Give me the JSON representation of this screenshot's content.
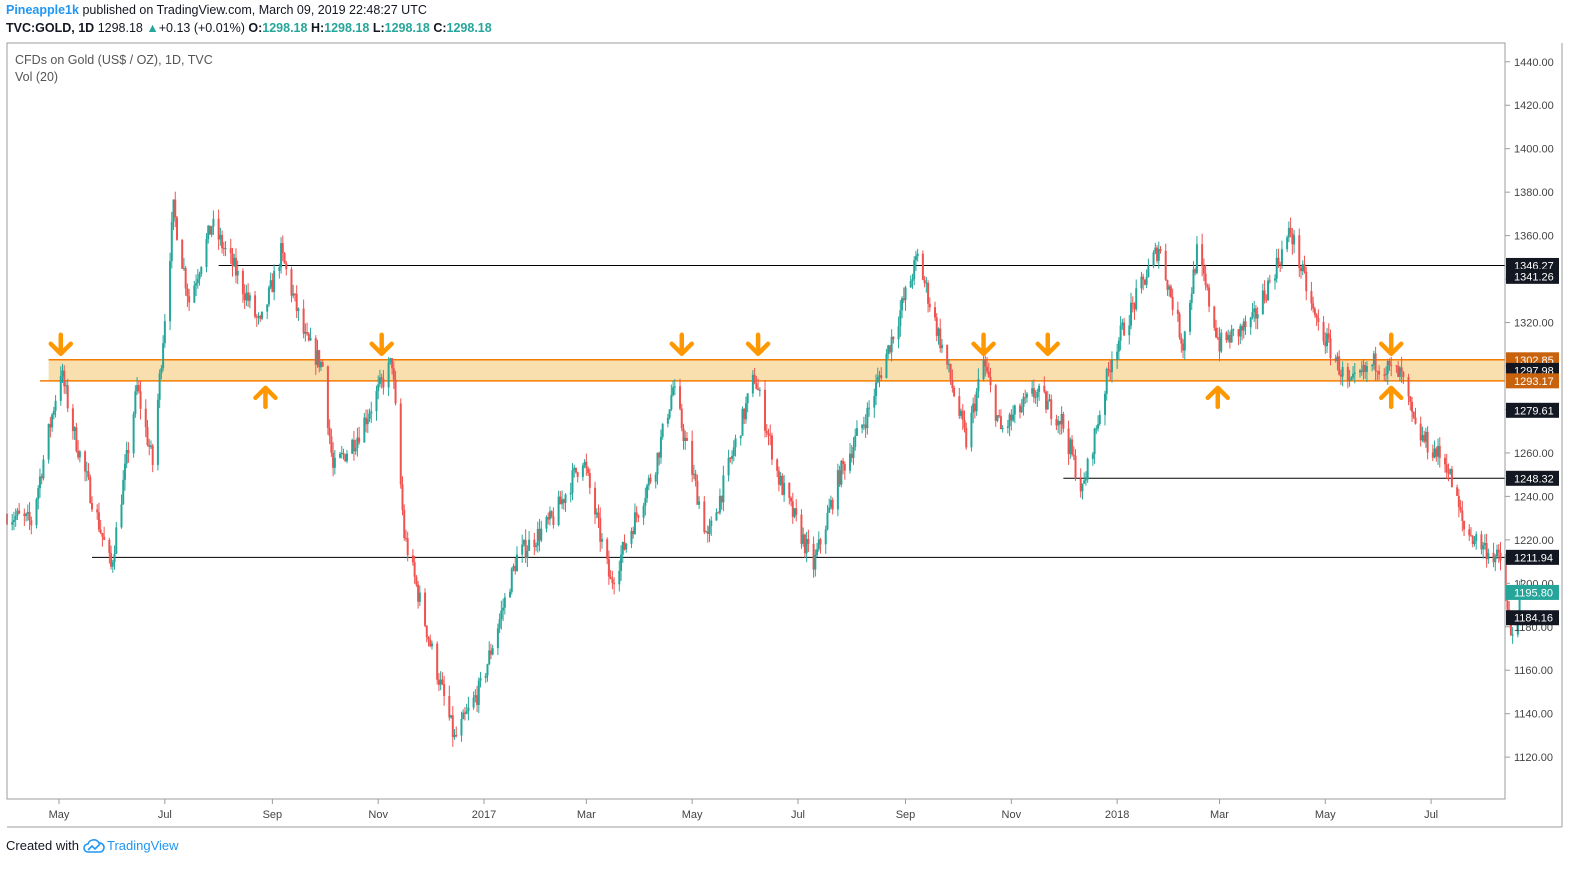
{
  "header": {
    "author": "Pineapple1k",
    "published_text": "published on TradingView.com, March 09, 2019 22:48:27 UTC",
    "symbol": "TVC:GOLD, 1D",
    "last": "1298.18",
    "change": "+0.13 (+0.01%)",
    "o_label": "O:",
    "o_value": "1298.18",
    "h_label": "H:",
    "h_value": "1298.18",
    "l_label": "L:",
    "l_value": "1298.18",
    "c_label": "C:",
    "c_value": "1298.18"
  },
  "legend": {
    "title": "CFDs on Gold (US$ / OZ), 1D, TVC",
    "indicator": "Vol (20)"
  },
  "footer": {
    "created_with": "Created with",
    "brand": "TradingView"
  },
  "colors": {
    "up": "#26a69a",
    "down": "#ef5350",
    "zone_fill": "#f8d8a0",
    "zone_line": "#f57c00",
    "arrow": "#ff9800",
    "level": "#000000"
  },
  "chart_data": {
    "type": "candlestick",
    "title": "CFDs on Gold (US$ / OZ), 1D, TVC",
    "xlabel": "",
    "ylabel": "",
    "x_range": [
      "2016-04-01",
      "2018-08-22"
    ],
    "ylim": [
      1100,
      1450
    ],
    "y_ticks": [
      1120,
      1140,
      1160,
      1180,
      1200,
      1220,
      1240,
      1260,
      1280,
      1300,
      1320,
      1340,
      1360,
      1380,
      1400,
      1420,
      1440
    ],
    "x_ticks": [
      {
        "label": "May",
        "date": "2016-05-01"
      },
      {
        "label": "Jul",
        "date": "2016-07-01"
      },
      {
        "label": "Sep",
        "date": "2016-09-01"
      },
      {
        "label": "Nov",
        "date": "2016-11-01"
      },
      {
        "label": "2017",
        "date": "2017-01-01"
      },
      {
        "label": "Mar",
        "date": "2017-03-01"
      },
      {
        "label": "May",
        "date": "2017-05-01"
      },
      {
        "label": "Jul",
        "date": "2017-07-01"
      },
      {
        "label": "Sep",
        "date": "2017-09-01"
      },
      {
        "label": "Nov",
        "date": "2017-11-01"
      },
      {
        "label": "2018",
        "date": "2018-01-01"
      },
      {
        "label": "Mar",
        "date": "2018-03-01"
      },
      {
        "label": "May",
        "date": "2018-05-01"
      },
      {
        "label": "Jul",
        "date": "2018-07-01"
      }
    ],
    "price_path": [
      [
        "2016-04-01",
        1232
      ],
      [
        "2016-04-15",
        1228
      ],
      [
        "2016-05-02",
        1298
      ],
      [
        "2016-05-10",
        1268
      ],
      [
        "2016-05-31",
        1207
      ],
      [
        "2016-06-15",
        1290
      ],
      [
        "2016-06-24",
        1255
      ],
      [
        "2016-07-06",
        1372
      ],
      [
        "2016-07-15",
        1330
      ],
      [
        "2016-07-28",
        1365
      ],
      [
        "2016-08-10",
        1345
      ],
      [
        "2016-08-25",
        1318
      ],
      [
        "2016-09-06",
        1352
      ],
      [
        "2016-09-20",
        1312
      ],
      [
        "2016-09-30",
        1300
      ],
      [
        "2016-10-06",
        1252
      ],
      [
        "2016-10-20",
        1268
      ],
      [
        "2016-11-09",
        1302
      ],
      [
        "2016-11-16",
        1222
      ],
      [
        "2016-12-01",
        1172
      ],
      [
        "2016-12-15",
        1128
      ],
      [
        "2016-12-30",
        1152
      ],
      [
        "2017-01-20",
        1212
      ],
      [
        "2017-02-10",
        1230
      ],
      [
        "2017-02-27",
        1258
      ],
      [
        "2017-03-15",
        1200
      ],
      [
        "2017-04-10",
        1255
      ],
      [
        "2017-04-20",
        1290
      ],
      [
        "2017-05-10",
        1220
      ],
      [
        "2017-06-06",
        1295
      ],
      [
        "2017-06-20",
        1248
      ],
      [
        "2017-07-10",
        1208
      ],
      [
        "2017-07-25",
        1250
      ],
      [
        "2017-08-10",
        1278
      ],
      [
        "2017-09-08",
        1350
      ],
      [
        "2017-09-25",
        1300
      ],
      [
        "2017-10-06",
        1265
      ],
      [
        "2017-10-16",
        1302
      ],
      [
        "2017-10-26",
        1270
      ],
      [
        "2017-11-15",
        1288
      ],
      [
        "2017-11-30",
        1275
      ],
      [
        "2017-12-12",
        1242
      ],
      [
        "2017-12-29",
        1305
      ],
      [
        "2018-01-25",
        1355
      ],
      [
        "2018-02-08",
        1310
      ],
      [
        "2018-02-16",
        1352
      ],
      [
        "2018-03-01",
        1310
      ],
      [
        "2018-03-20",
        1320
      ],
      [
        "2018-04-11",
        1362
      ],
      [
        "2018-04-25",
        1322
      ],
      [
        "2018-05-15",
        1290
      ],
      [
        "2018-05-30",
        1302
      ],
      [
        "2018-06-14",
        1295
      ],
      [
        "2018-06-22",
        1270
      ],
      [
        "2018-07-10",
        1255
      ],
      [
        "2018-07-20",
        1225
      ],
      [
        "2018-08-10",
        1210
      ],
      [
        "2018-08-16",
        1175
      ],
      [
        "2018-08-22",
        1195
      ]
    ],
    "resistance_zone": {
      "top": 1302.85,
      "bottom": 1293.17,
      "start": "2016-04-25",
      "end": "2018-08-22"
    },
    "zone_border_start": "2016-04-20",
    "levels": [
      {
        "value": 1346.27,
        "start": "2016-08-01"
      },
      {
        "value": 1248.32,
        "start": "2017-12-01"
      },
      {
        "value": 1211.94,
        "start": "2016-05-20"
      }
    ],
    "arrows_down": [
      "2016-05-02",
      "2016-11-03",
      "2017-04-25",
      "2017-06-08",
      "2017-10-16",
      "2017-11-22",
      "2018-06-08"
    ],
    "arrows_up": [
      "2016-08-28",
      "2018-02-28",
      "2018-06-08"
    ],
    "price_labels": [
      {
        "value": 1346.27,
        "text": "1346.27",
        "bg": "#131722"
      },
      {
        "value": 1341.26,
        "text": "1341.26",
        "bg": "#131722"
      },
      {
        "value": 1302.85,
        "text": "1302.85",
        "bg": "#c8620c"
      },
      {
        "value": 1297.98,
        "text": "1297.98",
        "bg": "#131722"
      },
      {
        "value": 1293.17,
        "text": "1293.17",
        "bg": "#c8620c"
      },
      {
        "value": 1279.61,
        "text": "1279.61",
        "bg": "#131722"
      },
      {
        "value": 1248.32,
        "text": "1248.32",
        "bg": "#131722"
      },
      {
        "value": 1211.94,
        "text": "1211.94",
        "bg": "#131722"
      },
      {
        "value": 1195.8,
        "text": "1195.80",
        "bg": "#26a69a"
      },
      {
        "value": 1184.16,
        "text": "1184.16",
        "bg": "#131722"
      }
    ]
  }
}
